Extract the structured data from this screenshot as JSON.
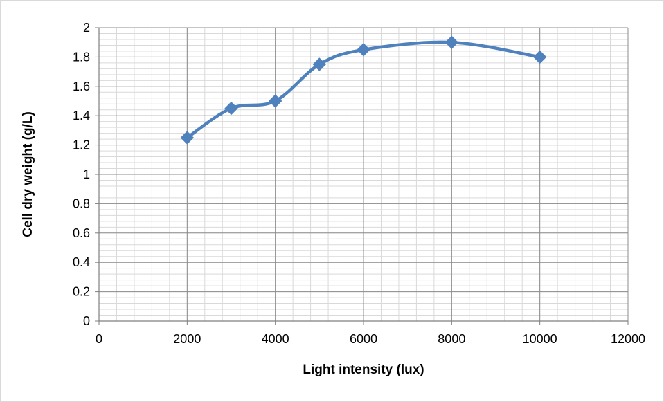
{
  "chart_data": {
    "type": "line",
    "title": "",
    "xlabel": "Light intensity (lux)",
    "ylabel": "Cell dry weight (g/L)",
    "xlim": [
      0,
      12000
    ],
    "ylim": [
      0,
      2
    ],
    "x_ticks": [
      0,
      2000,
      4000,
      6000,
      8000,
      10000,
      12000
    ],
    "y_ticks": [
      0,
      0.2,
      0.4,
      0.6,
      0.8,
      1,
      1.2,
      1.4,
      1.6,
      1.8,
      2
    ],
    "x_tick_labels": [
      "0",
      "2000",
      "4000",
      "6000",
      "8000",
      "10000",
      "12000"
    ],
    "y_tick_labels": [
      "0",
      "0.2",
      "0.4",
      "0.6",
      "0.8",
      "1",
      "1.2",
      "1.4",
      "1.6",
      "1.8",
      "2"
    ],
    "grid": true,
    "smooth": true,
    "marker": "diamond",
    "series": [
      {
        "color": "#4F81BD",
        "x": [
          2000,
          3000,
          4000,
          5000,
          6000,
          8000,
          10000
        ],
        "y": [
          1.25,
          1.45,
          1.5,
          1.75,
          1.85,
          1.9,
          1.8
        ]
      }
    ]
  }
}
